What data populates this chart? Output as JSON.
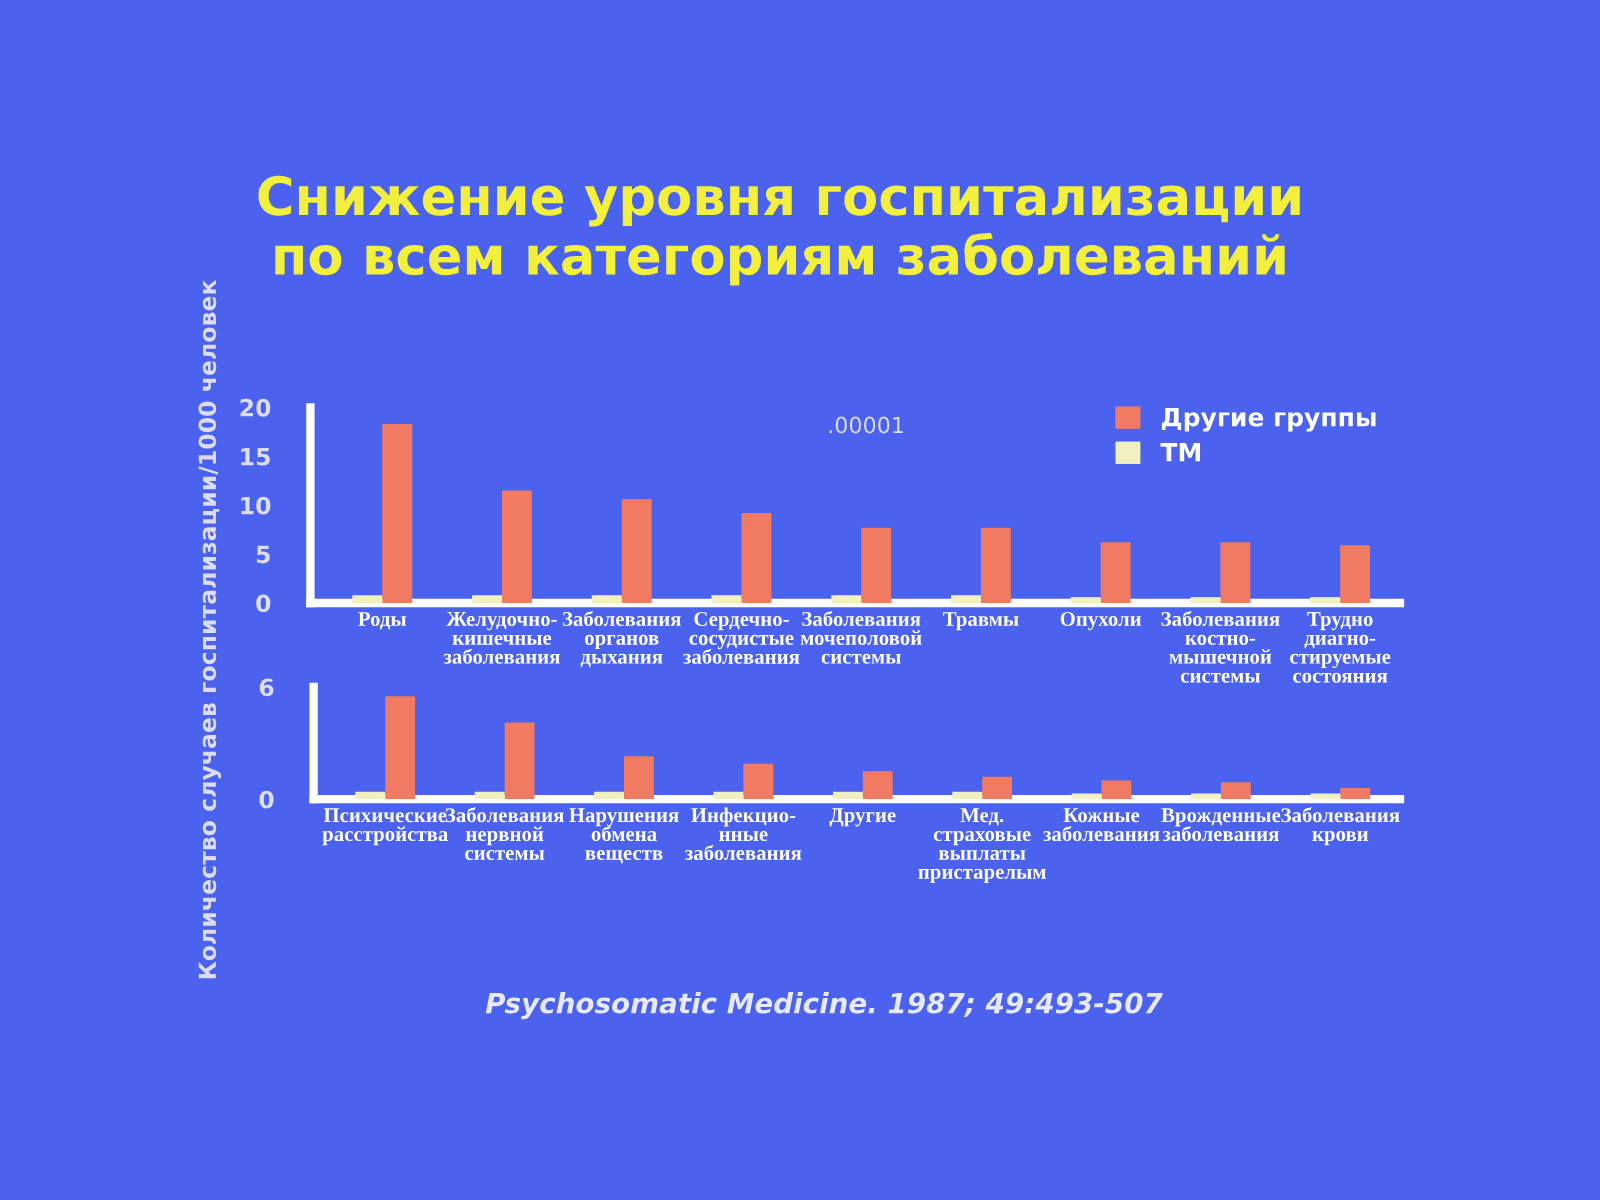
{
  "chart_data": [
    {
      "type": "bar",
      "title": "Снижение уровня госпитализации\nпо всем категориям заболеваний",
      "ylabel": "Количество случаев госпитализации/1000 человек",
      "categories": [
        "Роды",
        "Желудочно-\nкишечные\nзаболевания",
        "Заболевания\nорганов\nдыхания",
        "Сердечно-\nсосудистые\nзаболевания",
        "Заболевания\nмочеполовой\nсистемы",
        "Травмы",
        "Опухоли",
        "Заболевания\nкостно-\nмышечной\nсистемы",
        "Трудно\nдиагно-\nстируемые\nсостояния"
      ],
      "series": [
        {
          "name": "Другие группы",
          "color": "#f07a62",
          "values": [
            18.3,
            11.5,
            10.6,
            9.2,
            7.7,
            7.7,
            6.2,
            6.2,
            5.9
          ]
        },
        {
          "name": "ТМ",
          "color": "#f0f0c0",
          "values": [
            0.8,
            0.8,
            0.8,
            0.8,
            0.8,
            0.8,
            0.6,
            0.6,
            0.6
          ]
        }
      ],
      "ylim": [
        0,
        20
      ],
      "yticks": [
        0,
        5,
        10,
        15,
        20
      ],
      "legend": "top right",
      "annotations": [
        ".00001"
      ]
    },
    {
      "type": "bar",
      "categories": [
        "Психические\nрасстройства",
        "Заболевания\nнервной\nсистемы",
        "Нарушения\nобмена\nвеществ",
        "Инфекцио-\nнные\nзаболевания",
        "Другие",
        "Мед.\nстраховые\nвыплаты\nпристарелым",
        "Кожные\nзаболевания",
        "Врожденные\nзаболевания",
        "Заболевания\nкрови"
      ],
      "series": [
        {
          "color": "#f07a62",
          "values": [
            5.5,
            4.1,
            2.3,
            1.9,
            1.5,
            1.2,
            1.0,
            0.9,
            0.6
          ]
        },
        {
          "color": "#f0f0c0",
          "values": [
            0.4,
            0.4,
            0.4,
            0.4,
            0.4,
            0.4,
            0.3,
            0.3,
            0.3
          ]
        }
      ],
      "ylim": [
        0,
        6
      ],
      "yticks": [
        6,
        0
      ],
      "annotations": [
        "Psychosomatic Medicine. 1987; 49:493-507"
      ]
    }
  ]
}
